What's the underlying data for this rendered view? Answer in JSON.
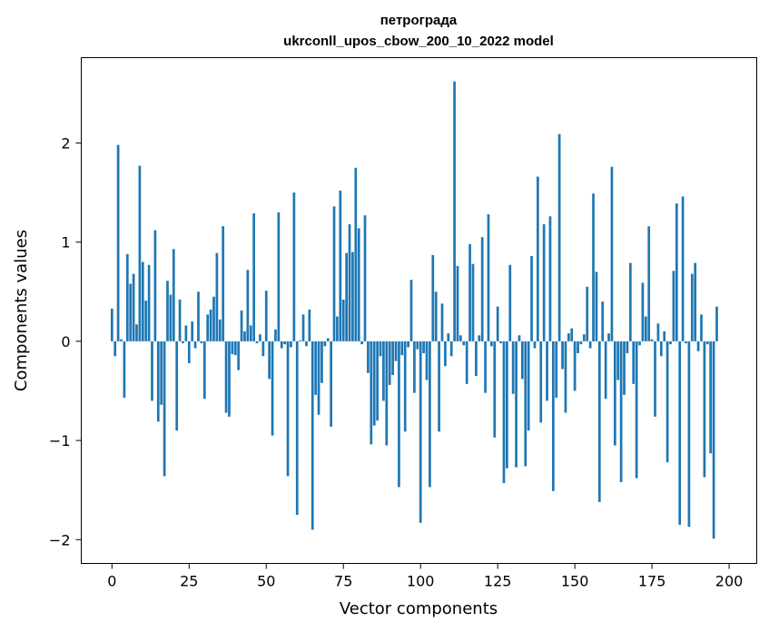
{
  "chart_data": {
    "type": "bar",
    "title": "петрограда",
    "subtitle": "ukrconll_upos_cbow_200_10_2022 model",
    "xlabel": "Vector components",
    "ylabel": "Components values",
    "xlim": [
      -9.95,
      208.95
    ],
    "ylim": [
      -2.24,
      2.86
    ],
    "x_ticks": [
      0,
      25,
      50,
      75,
      100,
      125,
      150,
      175,
      200
    ],
    "y_ticks": [
      -2,
      -1,
      0,
      1,
      2
    ],
    "x_tick_labels": [
      "0",
      "25",
      "50",
      "75",
      "100",
      "125",
      "150",
      "175",
      "200"
    ],
    "y_tick_labels": [
      "−2",
      "−1",
      "0",
      "1",
      "2"
    ],
    "grid": false,
    "color": "#1f77b4",
    "values": [
      0.33,
      -0.15,
      1.98,
      0.02,
      -0.57,
      0.88,
      0.58,
      0.68,
      0.17,
      1.77,
      0.8,
      0.41,
      0.77,
      -0.6,
      1.12,
      -0.81,
      -0.64,
      -1.36,
      0.61,
      0.47,
      0.93,
      -0.9,
      0.42,
      -0.02,
      0.16,
      -0.22,
      0.2,
      -0.07,
      0.5,
      -0.02,
      -0.58,
      0.27,
      0.32,
      0.45,
      0.89,
      0.22,
      1.16,
      -0.72,
      -0.76,
      -0.13,
      -0.14,
      -0.29,
      0.31,
      0.1,
      0.72,
      0.16,
      1.29,
      -0.02,
      0.07,
      -0.15,
      0.51,
      -0.38,
      -0.95,
      0.12,
      1.3,
      -0.07,
      -0.03,
      -1.36,
      -0.06,
      1.5,
      -1.75,
      0.01,
      0.27,
      -0.05,
      0.32,
      -1.9,
      -0.54,
      -0.74,
      -0.42,
      -0.05,
      0.03,
      -0.86,
      1.36,
      0.25,
      1.52,
      0.42,
      0.89,
      1.18,
      0.9,
      1.75,
      1.14,
      -0.03,
      1.27,
      -0.32,
      -1.04,
      -0.85,
      -0.8,
      -0.15,
      -0.6,
      -1.05,
      -0.44,
      -0.34,
      -0.2,
      -1.47,
      -0.14,
      -0.91,
      -0.06,
      0.62,
      -0.52,
      -0.08,
      -1.83,
      -0.12,
      -0.39,
      -1.47,
      0.87,
      0.5,
      -0.91,
      0.38,
      -0.25,
      0.08,
      -0.15,
      2.62,
      0.76,
      0.06,
      -0.04,
      -0.43,
      0.98,
      0.78,
      -0.35,
      0.06,
      1.05,
      -0.52,
      1.28,
      -0.05,
      -0.97,
      0.35,
      -0.02,
      -1.43,
      -1.28,
      0.77,
      -0.53,
      -1.27,
      0.06,
      -0.38,
      -1.26,
      -0.9,
      0.86,
      -0.07,
      1.66,
      -0.82,
      1.18,
      -0.6,
      1.26,
      -1.51,
      -0.57,
      2.09,
      -0.28,
      -0.72,
      0.08,
      0.13,
      -0.5,
      -0.12,
      -0.03,
      0.07,
      0.55,
      -0.07,
      1.49,
      0.7,
      -1.62,
      0.4,
      -0.58,
      0.08,
      1.76,
      -1.05,
      -0.39,
      -1.42,
      -0.54,
      -0.12,
      0.79,
      -0.43,
      -1.38,
      -0.04,
      0.59,
      0.25,
      1.16,
      0.02,
      -0.76,
      0.18,
      -0.15,
      0.1,
      -1.22,
      -0.03,
      0.71,
      1.39,
      -1.85,
      1.46,
      -0.02,
      -1.87,
      0.68,
      0.79,
      -0.1,
      0.27,
      -1.37,
      -0.03,
      -1.13,
      -1.99,
      0.35
    ]
  }
}
